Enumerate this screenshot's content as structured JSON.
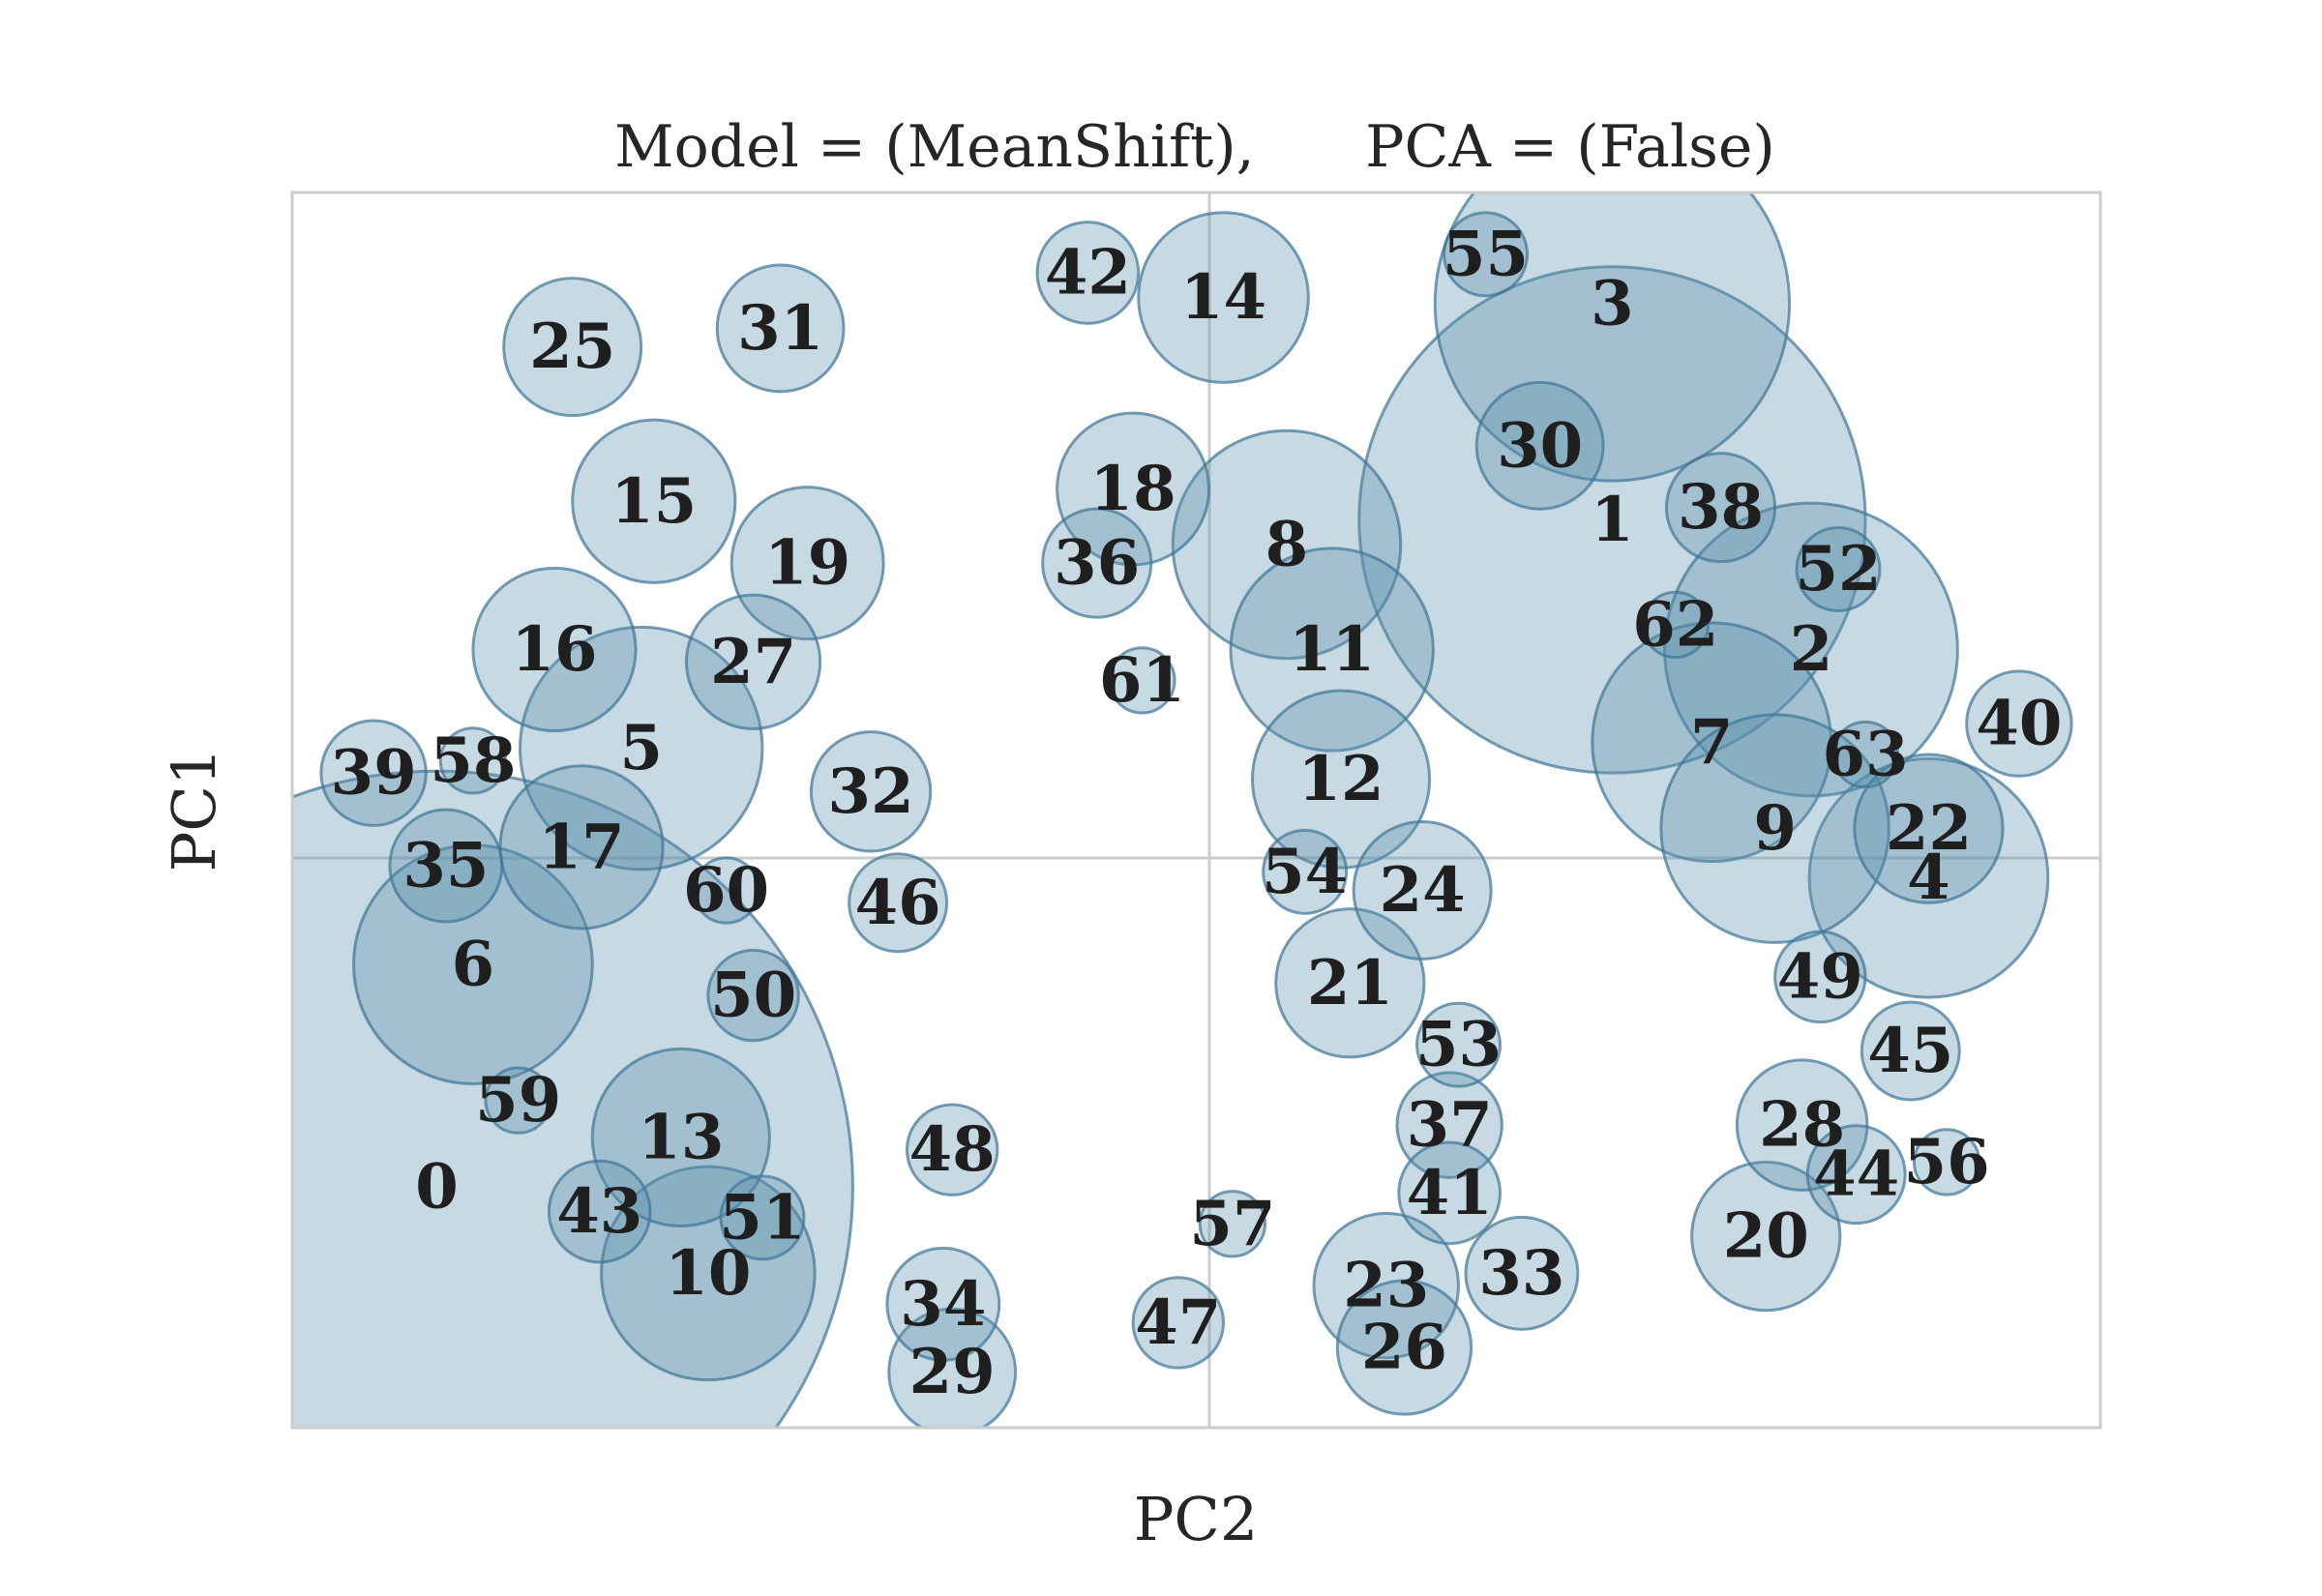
{
  "chart_data": {
    "type": "scatter",
    "title": "Model = (MeanShift),      PCA = (False)",
    "xlabel": "PC2",
    "ylabel": "PC1",
    "xlim": [
      0,
      100
    ],
    "ylim": [
      0,
      100
    ],
    "grid": false,
    "crosshair_at_center": true,
    "colors": {
      "bubble_fill": "#5c8fab",
      "bubble_edge": "#3f7596",
      "frame": "#cccccc",
      "text": "#262626"
    },
    "points": [
      {
        "label": "0",
        "x": 8.0,
        "y": 19.5,
        "size": 23
      },
      {
        "label": "1",
        "x": 73.0,
        "y": 73.5,
        "size": 14
      },
      {
        "label": "2",
        "x": 84.0,
        "y": 63.0,
        "size": 8.1
      },
      {
        "label": "3",
        "x": 73.0,
        "y": 91.0,
        "size": 9.8
      },
      {
        "label": "4",
        "x": 90.5,
        "y": 44.5,
        "size": 6.6
      },
      {
        "label": "5",
        "x": 19.3,
        "y": 55.0,
        "size": 6.7
      },
      {
        "label": "6",
        "x": 10.0,
        "y": 37.5,
        "size": 6.6
      },
      {
        "label": "7",
        "x": 78.5,
        "y": 55.5,
        "size": 6.6
      },
      {
        "label": "8",
        "x": 55.0,
        "y": 71.5,
        "size": 6.3
      },
      {
        "label": "9",
        "x": 82.0,
        "y": 48.5,
        "size": 6.3
      },
      {
        "label": "10",
        "x": 23.0,
        "y": 12.5,
        "size": 5.9
      },
      {
        "label": "11",
        "x": 57.5,
        "y": 63.0,
        "size": 5.6
      },
      {
        "label": "12",
        "x": 58.0,
        "y": 52.5,
        "size": 4.9
      },
      {
        "label": "13",
        "x": 21.5,
        "y": 23.5,
        "size": 4.9
      },
      {
        "label": "14",
        "x": 51.5,
        "y": 91.5,
        "size": 4.7
      },
      {
        "label": "15",
        "x": 20.0,
        "y": 75.0,
        "size": 4.5
      },
      {
        "label": "16",
        "x": 14.5,
        "y": 63.0,
        "size": 4.5
      },
      {
        "label": "17",
        "x": 16.0,
        "y": 47.0,
        "size": 4.5
      },
      {
        "label": "18",
        "x": 46.5,
        "y": 76.0,
        "size": 4.2
      },
      {
        "label": "19",
        "x": 28.5,
        "y": 70.0,
        "size": 4.2
      },
      {
        "label": "20",
        "x": 81.5,
        "y": 15.5,
        "size": 4.1
      },
      {
        "label": "21",
        "x": 58.5,
        "y": 36.0,
        "size": 4.1
      },
      {
        "label": "22",
        "x": 90.5,
        "y": 48.5,
        "size": 4.1
      },
      {
        "label": "23",
        "x": 60.5,
        "y": 11.5,
        "size": 4.0
      },
      {
        "label": "24",
        "x": 62.5,
        "y": 43.5,
        "size": 3.8
      },
      {
        "label": "25",
        "x": 15.5,
        "y": 87.5,
        "size": 3.8
      },
      {
        "label": "26",
        "x": 61.5,
        "y": 6.5,
        "size": 3.7
      },
      {
        "label": "27",
        "x": 25.5,
        "y": 62.0,
        "size": 3.7
      },
      {
        "label": "28",
        "x": 83.5,
        "y": 24.5,
        "size": 3.6
      },
      {
        "label": "29",
        "x": 36.5,
        "y": 4.5,
        "size": 3.5
      },
      {
        "label": "30",
        "x": 69.0,
        "y": 79.5,
        "size": 3.5
      },
      {
        "label": "31",
        "x": 27.0,
        "y": 89.0,
        "size": 3.5
      },
      {
        "label": "32",
        "x": 32.0,
        "y": 51.5,
        "size": 3.3
      },
      {
        "label": "33",
        "x": 68.0,
        "y": 12.5,
        "size": 3.1
      },
      {
        "label": "34",
        "x": 36.0,
        "y": 10.0,
        "size": 3.1
      },
      {
        "label": "35",
        "x": 8.5,
        "y": 45.5,
        "size": 3.1
      },
      {
        "label": "36",
        "x": 44.5,
        "y": 70.0,
        "size": 3.0
      },
      {
        "label": "37",
        "x": 64.0,
        "y": 24.5,
        "size": 2.9
      },
      {
        "label": "38",
        "x": 79.0,
        "y": 74.5,
        "size": 3.0
      },
      {
        "label": "39",
        "x": 4.5,
        "y": 53.0,
        "size": 2.9
      },
      {
        "label": "40",
        "x": 95.5,
        "y": 57.0,
        "size": 2.9
      },
      {
        "label": "41",
        "x": 64.0,
        "y": 19.0,
        "size": 2.8
      },
      {
        "label": "42",
        "x": 44.0,
        "y": 93.5,
        "size": 2.8
      },
      {
        "label": "43",
        "x": 17.0,
        "y": 17.5,
        "size": 2.8
      },
      {
        "label": "44",
        "x": 86.5,
        "y": 20.5,
        "size": 2.7
      },
      {
        "label": "45",
        "x": 89.5,
        "y": 30.5,
        "size": 2.7
      },
      {
        "label": "46",
        "x": 33.5,
        "y": 42.5,
        "size": 2.7
      },
      {
        "label": "47",
        "x": 49.0,
        "y": 8.5,
        "size": 2.5
      },
      {
        "label": "48",
        "x": 36.5,
        "y": 22.5,
        "size": 2.5
      },
      {
        "label": "49",
        "x": 84.5,
        "y": 36.5,
        "size": 2.5
      },
      {
        "label": "50",
        "x": 25.5,
        "y": 35.0,
        "size": 2.5
      },
      {
        "label": "51",
        "x": 26.0,
        "y": 17.0,
        "size": 2.3
      },
      {
        "label": "52",
        "x": 85.5,
        "y": 69.5,
        "size": 2.3
      },
      {
        "label": "53",
        "x": 64.5,
        "y": 31.0,
        "size": 2.3
      },
      {
        "label": "54",
        "x": 56.0,
        "y": 45.0,
        "size": 2.3
      },
      {
        "label": "55",
        "x": 66.0,
        "y": 95.0,
        "size": 2.3
      },
      {
        "label": "56",
        "x": 91.5,
        "y": 21.5,
        "size": 1.8
      },
      {
        "label": "57",
        "x": 52.0,
        "y": 16.5,
        "size": 1.8
      },
      {
        "label": "58",
        "x": 10.0,
        "y": 54.0,
        "size": 1.8
      },
      {
        "label": "59",
        "x": 12.5,
        "y": 26.5,
        "size": 1.8
      },
      {
        "label": "60",
        "x": 24.0,
        "y": 43.5,
        "size": 1.8
      },
      {
        "label": "61",
        "x": 47.0,
        "y": 60.5,
        "size": 1.8
      },
      {
        "label": "62",
        "x": 76.5,
        "y": 65.0,
        "size": 1.8
      },
      {
        "label": "63",
        "x": 87.0,
        "y": 54.5,
        "size": 1.8
      }
    ]
  }
}
